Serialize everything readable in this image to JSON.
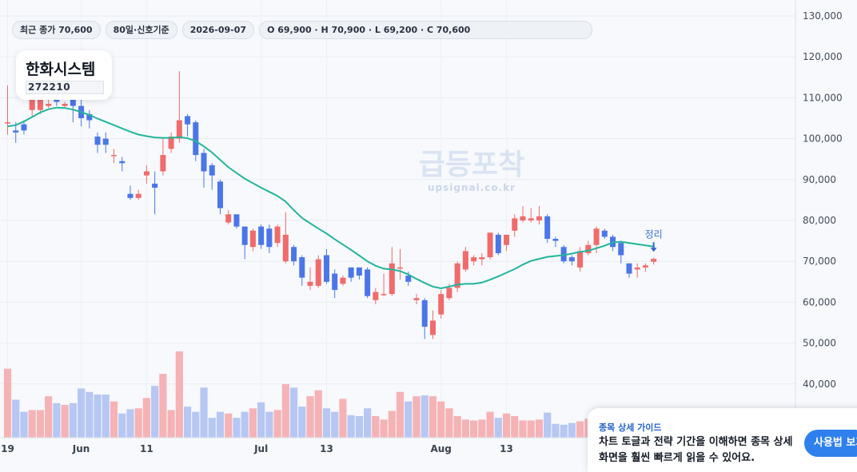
{
  "chips": {
    "close": "최근 종가 70,600",
    "period": "80일·신호기준",
    "date": "2026-09-07",
    "ohlc": "O 69,900 · H 70,900 · L 69,200 · C 70,600"
  },
  "stock": {
    "name": "한화시스템",
    "code": "272210"
  },
  "watermark": {
    "main": "급등포착",
    "sub": "upsignal.co.kr"
  },
  "guide": {
    "title": "종목 상세 가이드",
    "text": "차트 토글과 전략 기간을 이해하면 종목 상세 화면을 훨씬 빠르게 읽을 수 있어요.",
    "button": "사용법 보기"
  },
  "colors": {
    "up": "#f06b6b",
    "down": "#4a76e8",
    "ma": "#22b59a",
    "vol_up": "#f5b3b6",
    "vol_down": "#b7c7f3"
  },
  "chart_data": {
    "type": "candlestick",
    "y_ticks": [
      "130,000",
      "120,000",
      "110,000",
      "100,000",
      "90,000",
      "80,000",
      "70,000",
      "60,000",
      "50,000",
      "40,000"
    ],
    "ylim": [
      35000,
      130000
    ],
    "x_tick_labels": [
      {
        "label": "19",
        "index": 0
      },
      {
        "label": "Jun",
        "index": 9
      },
      {
        "label": "11",
        "index": 17
      },
      {
        "label": "Jul",
        "index": 31
      },
      {
        "label": "13",
        "index": 39
      },
      {
        "label": "Aug",
        "index": 53
      },
      {
        "label": "13",
        "index": 61
      }
    ],
    "annotation": {
      "label": "정리",
      "index": 79,
      "price": 73500
    },
    "candles": [
      [
        104000,
        104000,
        113000,
        101000
      ],
      [
        102000,
        101500,
        104000,
        99000
      ],
      [
        103500,
        102000,
        104500,
        101000
      ],
      [
        107000,
        109500,
        110000,
        105500
      ],
      [
        107000,
        109500,
        110500,
        106000
      ],
      [
        108000,
        108500,
        110000,
        107500
      ],
      [
        110000,
        109000,
        111000,
        108000
      ],
      [
        108000,
        108500,
        109000,
        107500
      ],
      [
        111000,
        108000,
        112000,
        104000
      ],
      [
        108000,
        105000,
        110000,
        103000
      ],
      [
        106000,
        104500,
        107000,
        102500
      ],
      [
        100500,
        98500,
        101500,
        96500
      ],
      [
        100000,
        98500,
        101500,
        96500
      ],
      [
        96000,
        96000,
        97500,
        94000
      ],
      [
        94500,
        94000,
        95500,
        92000
      ],
      [
        86500,
        85500,
        88500,
        85000
      ],
      [
        85500,
        86500,
        87500,
        85000
      ],
      [
        91000,
        92000,
        93500,
        89000
      ],
      [
        89000,
        88000,
        92000,
        81500
      ],
      [
        92000,
        96000,
        100000,
        91000
      ],
      [
        97500,
        100500,
        101500,
        96500
      ],
      [
        100000,
        104500,
        116500,
        99000
      ],
      [
        105500,
        103500,
        106000,
        100500
      ],
      [
        104000,
        96000,
        104500,
        94500
      ],
      [
        96500,
        92000,
        97500,
        88000
      ],
      [
        93500,
        91000,
        94000,
        87500
      ],
      [
        89500,
        83000,
        90000,
        81500
      ],
      [
        79500,
        81500,
        82500,
        79000
      ],
      [
        81500,
        78500,
        81500,
        78000
      ],
      [
        78500,
        74000,
        78500,
        70500
      ],
      [
        73500,
        77500,
        78000,
        72500
      ],
      [
        78500,
        74000,
        79000,
        73000
      ],
      [
        78000,
        73500,
        79000,
        72000
      ],
      [
        74500,
        78500,
        79000,
        73500
      ],
      [
        70000,
        76500,
        82000,
        69500
      ],
      [
        73500,
        70000,
        74000,
        69000
      ],
      [
        71000,
        66000,
        71500,
        64000
      ],
      [
        64000,
        65000,
        68500,
        63000
      ],
      [
        64000,
        70500,
        71500,
        63500
      ],
      [
        71500,
        65000,
        73000,
        64500
      ],
      [
        67000,
        63000,
        68000,
        61000
      ],
      [
        64500,
        66000,
        66500,
        64000
      ],
      [
        68500,
        66000,
        68500,
        65000
      ],
      [
        68500,
        66500,
        68500,
        65500
      ],
      [
        68000,
        61500,
        68500,
        61000
      ],
      [
        60500,
        62500,
        63500,
        59500
      ],
      [
        62000,
        62000,
        67000,
        61500
      ],
      [
        62000,
        69500,
        73500,
        61500
      ],
      [
        68500,
        68500,
        73000,
        65500
      ],
      [
        66500,
        65000,
        67500,
        64000
      ],
      [
        60500,
        61000,
        62000,
        59500
      ],
      [
        60500,
        54000,
        61000,
        51000
      ],
      [
        52000,
        55500,
        58000,
        51000
      ],
      [
        57000,
        62000,
        63000,
        56000
      ],
      [
        61000,
        63500,
        64500,
        60500
      ],
      [
        63500,
        69500,
        70000,
        62500
      ],
      [
        68000,
        72500,
        73500,
        67500
      ],
      [
        70000,
        71000,
        71500,
        69000
      ],
      [
        70500,
        71000,
        72000,
        69000
      ],
      [
        71000,
        77000,
        77000,
        70500
      ],
      [
        76500,
        72000,
        77000,
        71500
      ],
      [
        74000,
        76500,
        76500,
        72500
      ],
      [
        77500,
        80500,
        81500,
        76000
      ],
      [
        80000,
        81000,
        83500,
        79500
      ],
      [
        80000,
        80500,
        83000,
        79500
      ],
      [
        80000,
        81000,
        83500,
        79000
      ],
      [
        81000,
        75500,
        81500,
        74500
      ],
      [
        75500,
        75000,
        76000,
        73500
      ],
      [
        73500,
        70000,
        74000,
        69500
      ],
      [
        71000,
        70000,
        71500,
        69000
      ],
      [
        68500,
        72500,
        73500,
        67500
      ],
      [
        72000,
        74000,
        75000,
        71500
      ],
      [
        74000,
        78000,
        78500,
        72000
      ],
      [
        77500,
        76000,
        78000,
        75500
      ],
      [
        76000,
        73500,
        76500,
        72500
      ],
      [
        74500,
        71500,
        75000,
        69500
      ],
      [
        69500,
        67000,
        69500,
        66000
      ],
      [
        68000,
        68500,
        69500,
        66000
      ],
      [
        68500,
        69000,
        69500,
        67500
      ],
      [
        69900,
        70600,
        70900,
        69200
      ]
    ],
    "ma_line": [
      103000,
      103300,
      104200,
      105300,
      106400,
      107200,
      107600,
      107500,
      107100,
      106500,
      105800,
      104900,
      104100,
      103300,
      102500,
      101700,
      101000,
      100600,
      100300,
      100200,
      100200,
      100400,
      100100,
      99400,
      98100,
      96600,
      94800,
      93000,
      91600,
      90200,
      89100,
      88000,
      87000,
      86000,
      84600,
      82500,
      80600,
      79300,
      78000,
      76800,
      75400,
      74100,
      72800,
      71400,
      70000,
      68900,
      68200,
      68000,
      67600,
      66800,
      65700,
      64700,
      63800,
      63400,
      63800,
      64300,
      64500,
      64500,
      64800,
      65500,
      66300,
      67200,
      68100,
      69200,
      70100,
      70600,
      71100,
      71300,
      71500,
      71900,
      72300,
      72600,
      73200,
      73800,
      74600,
      74800,
      74500,
      74200,
      73900,
      73600
    ],
    "volumes": [
      0.8,
      0.44,
      0.3,
      0.32,
      0.32,
      0.48,
      0.4,
      0.38,
      0.4,
      0.57,
      0.53,
      0.5,
      0.5,
      0.42,
      0.28,
      0.33,
      0.34,
      0.46,
      0.6,
      0.74,
      0.32,
      1.0,
      0.36,
      0.3,
      0.58,
      0.23,
      0.3,
      0.28,
      0.23,
      0.3,
      0.34,
      0.41,
      0.3,
      0.32,
      0.62,
      0.58,
      0.36,
      0.48,
      0.55,
      0.34,
      0.3,
      0.45,
      0.26,
      0.25,
      0.34,
      0.25,
      0.21,
      0.31,
      0.53,
      0.42,
      0.48,
      0.49,
      0.48,
      0.42,
      0.34,
      0.25,
      0.21,
      0.2,
      0.21,
      0.3,
      0.23,
      0.28,
      0.25,
      0.2,
      0.2,
      0.21,
      0.29,
      0.16,
      0.15,
      0.17,
      0.19,
      0.22,
      0.24,
      0.2,
      0.2,
      0.16,
      0.16,
      0.15,
      0.15,
      0.15
    ]
  }
}
